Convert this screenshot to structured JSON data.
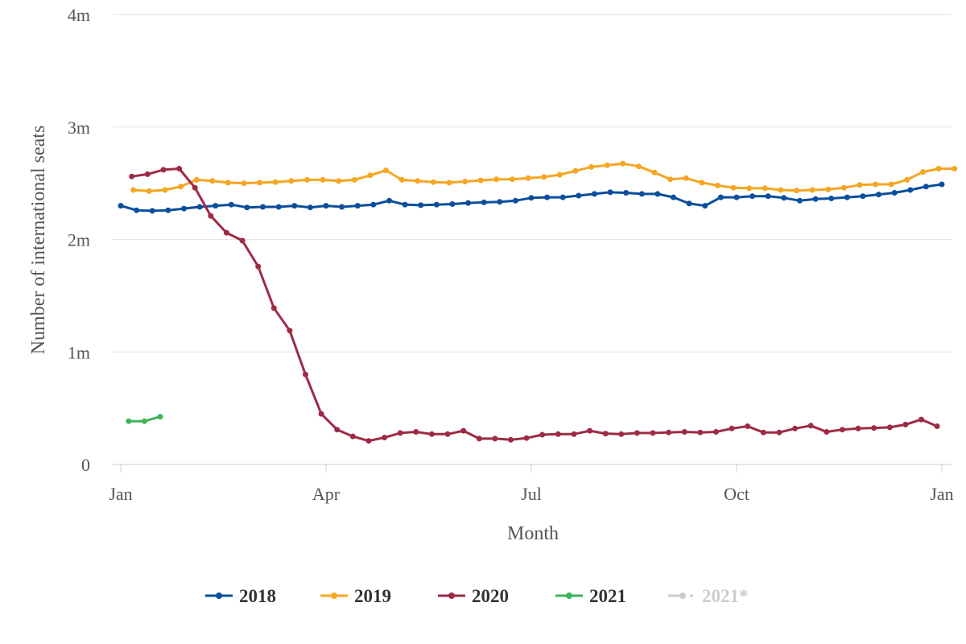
{
  "chart_data": {
    "type": "line",
    "title": "",
    "xlabel": "Month",
    "ylabel": "Number of international seats",
    "x_ticks": [
      "Jan",
      "Apr",
      "Jul",
      "Oct",
      "Jan"
    ],
    "y_ticks": [
      "0",
      "1m",
      "2m",
      "3m",
      "4m"
    ],
    "ylim": [
      0,
      4000000
    ],
    "xlim": [
      0,
      52.8
    ],
    "x_unit": "week of year",
    "grid": "horizontal",
    "legend_position": "bottom",
    "series": [
      {
        "name": "2018",
        "color": "#0b4f9c",
        "x": [
          0,
          1,
          2,
          3,
          4,
          5,
          6,
          7,
          8,
          9,
          10,
          11,
          12,
          13,
          14,
          15,
          16,
          17,
          18,
          19,
          20,
          21,
          22,
          23,
          24,
          25,
          26,
          27,
          28,
          29,
          30,
          31,
          32,
          33,
          34,
          35,
          36,
          37,
          38,
          39,
          40,
          41,
          42,
          43,
          44,
          45,
          46,
          47,
          48,
          49,
          50,
          51,
          52
        ],
        "values": [
          2300000,
          2260000,
          2255000,
          2260000,
          2275000,
          2290000,
          2300000,
          2310000,
          2285000,
          2290000,
          2290000,
          2300000,
          2285000,
          2300000,
          2290000,
          2300000,
          2310000,
          2345000,
          2310000,
          2305000,
          2310000,
          2315000,
          2325000,
          2330000,
          2335000,
          2345000,
          2370000,
          2375000,
          2375000,
          2390000,
          2405000,
          2420000,
          2415000,
          2405000,
          2405000,
          2375000,
          2320000,
          2300000,
          2375000,
          2375000,
          2385000,
          2385000,
          2370000,
          2345000,
          2360000,
          2365000,
          2375000,
          2385000,
          2400000,
          2415000,
          2440000,
          2470000,
          2490000
        ]
      },
      {
        "name": "2019",
        "color": "#f5a623",
        "x": [
          0.8,
          1.8,
          2.8,
          3.8,
          4.8,
          5.8,
          6.8,
          7.8,
          8.8,
          9.8,
          10.8,
          11.8,
          12.8,
          13.8,
          14.8,
          15.8,
          16.8,
          17.8,
          18.8,
          19.8,
          20.8,
          21.8,
          22.8,
          23.8,
          24.8,
          25.8,
          26.8,
          27.8,
          28.8,
          29.8,
          30.8,
          31.8,
          32.8,
          33.8,
          34.8,
          35.8,
          36.8,
          37.8,
          38.8,
          39.8,
          40.8,
          41.8,
          42.8,
          43.8,
          44.8,
          45.8,
          46.8,
          47.8,
          48.8,
          49.8,
          50.8,
          51.8,
          52.8
        ],
        "values": [
          2440000,
          2430000,
          2440000,
          2470000,
          2530000,
          2520000,
          2505000,
          2500000,
          2505000,
          2510000,
          2520000,
          2530000,
          2530000,
          2520000,
          2530000,
          2570000,
          2615000,
          2530000,
          2520000,
          2510000,
          2505000,
          2515000,
          2525000,
          2535000,
          2535000,
          2545000,
          2555000,
          2575000,
          2610000,
          2645000,
          2660000,
          2675000,
          2650000,
          2595000,
          2535000,
          2545000,
          2505000,
          2480000,
          2460000,
          2455000,
          2455000,
          2440000,
          2435000,
          2440000,
          2445000,
          2460000,
          2485000,
          2490000,
          2490000,
          2530000,
          2600000,
          2630000,
          2630000
        ]
      },
      {
        "name": "2020",
        "color": "#9e2b46",
        "x": [
          0.7,
          1.7,
          2.7,
          3.7,
          4.7,
          5.7,
          6.7,
          7.7,
          8.7,
          9.7,
          10.7,
          11.7,
          12.7,
          13.7,
          14.7,
          15.7,
          16.7,
          17.7,
          18.7,
          19.7,
          20.7,
          21.7,
          22.7,
          23.7,
          24.7,
          25.7,
          26.7,
          27.7,
          28.7,
          29.7,
          30.7,
          31.7,
          32.7,
          33.7,
          34.7,
          35.7,
          36.7,
          37.7,
          38.7,
          39.7,
          40.7,
          41.7,
          42.7,
          43.7,
          44.7,
          45.7,
          46.7,
          47.7,
          48.7,
          49.7,
          50.7,
          51.7
        ],
        "values": [
          2560000,
          2580000,
          2620000,
          2630000,
          2460000,
          2210000,
          2060000,
          1990000,
          1760000,
          1390000,
          1190000,
          800000,
          450000,
          310000,
          250000,
          210000,
          240000,
          280000,
          290000,
          270000,
          270000,
          300000,
          230000,
          230000,
          220000,
          235000,
          265000,
          270000,
          270000,
          300000,
          275000,
          270000,
          280000,
          280000,
          285000,
          290000,
          285000,
          290000,
          320000,
          340000,
          285000,
          285000,
          320000,
          345000,
          290000,
          310000,
          320000,
          325000,
          330000,
          355000,
          400000,
          340000
        ]
      },
      {
        "name": "2021",
        "color": "#3fb35a",
        "x": [
          0.5,
          1.5,
          2.5
        ],
        "values": [
          385000,
          385000,
          425000
        ]
      },
      {
        "name": "2021*",
        "color": "#cccccc",
        "x": [],
        "values": []
      }
    ]
  }
}
